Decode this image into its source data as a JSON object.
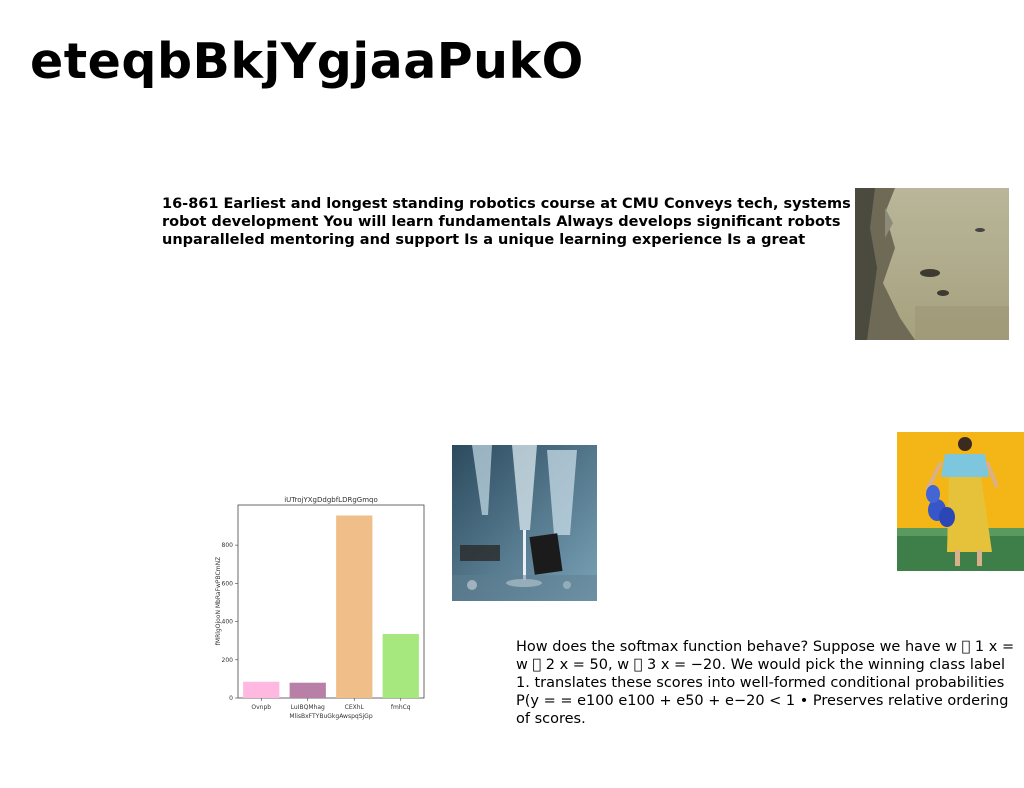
{
  "slide": {
    "title": "eteqbBkjYgjaaPukO",
    "paragraph_1": "16-861 Earliest and longest standing robotics course at CMU Conveys tech, systems robot development You will learn fundamentals Always develops significant robots unparalleled mentoring and support Is a unique learning experience Is a great",
    "paragraph_2": "How does the softmax function behave? Suppose we have w ⃞ 1 x = w ⃞ 2 x = 50, w ⃞ 3 x = −20. We would pick the winning class label 1. translates these scores into well-formed conditional probabilities P(y = = e100 e100 + e50 + e−20 < 1 • Preserves relative ordering of scores."
  },
  "images": {
    "coast": "coastline-photo",
    "champagne": "champagne-glasses-photo",
    "woman": "woman-with-balloons-photo"
  },
  "chart_data": {
    "type": "bar",
    "title": "iUTrojYXgDdgbfLDRgGmqo",
    "xlabel": "MlisBxFTYBuGkgAwspqSjGp",
    "ylabel": "fMRlgOjooN MbRaFwPBCmNZ",
    "categories": [
      "Ovnpb",
      "LuIBQMhag",
      "CEXhL",
      "fmhCq"
    ],
    "values": [
      85,
      80,
      955,
      335
    ],
    "colors": [
      "#ffb8df",
      "#b880a6",
      "#f0be88",
      "#a6e87e"
    ],
    "ylim": [
      0,
      1010
    ],
    "yticks": [
      0,
      200,
      400,
      600,
      800
    ],
    "grid": false
  }
}
